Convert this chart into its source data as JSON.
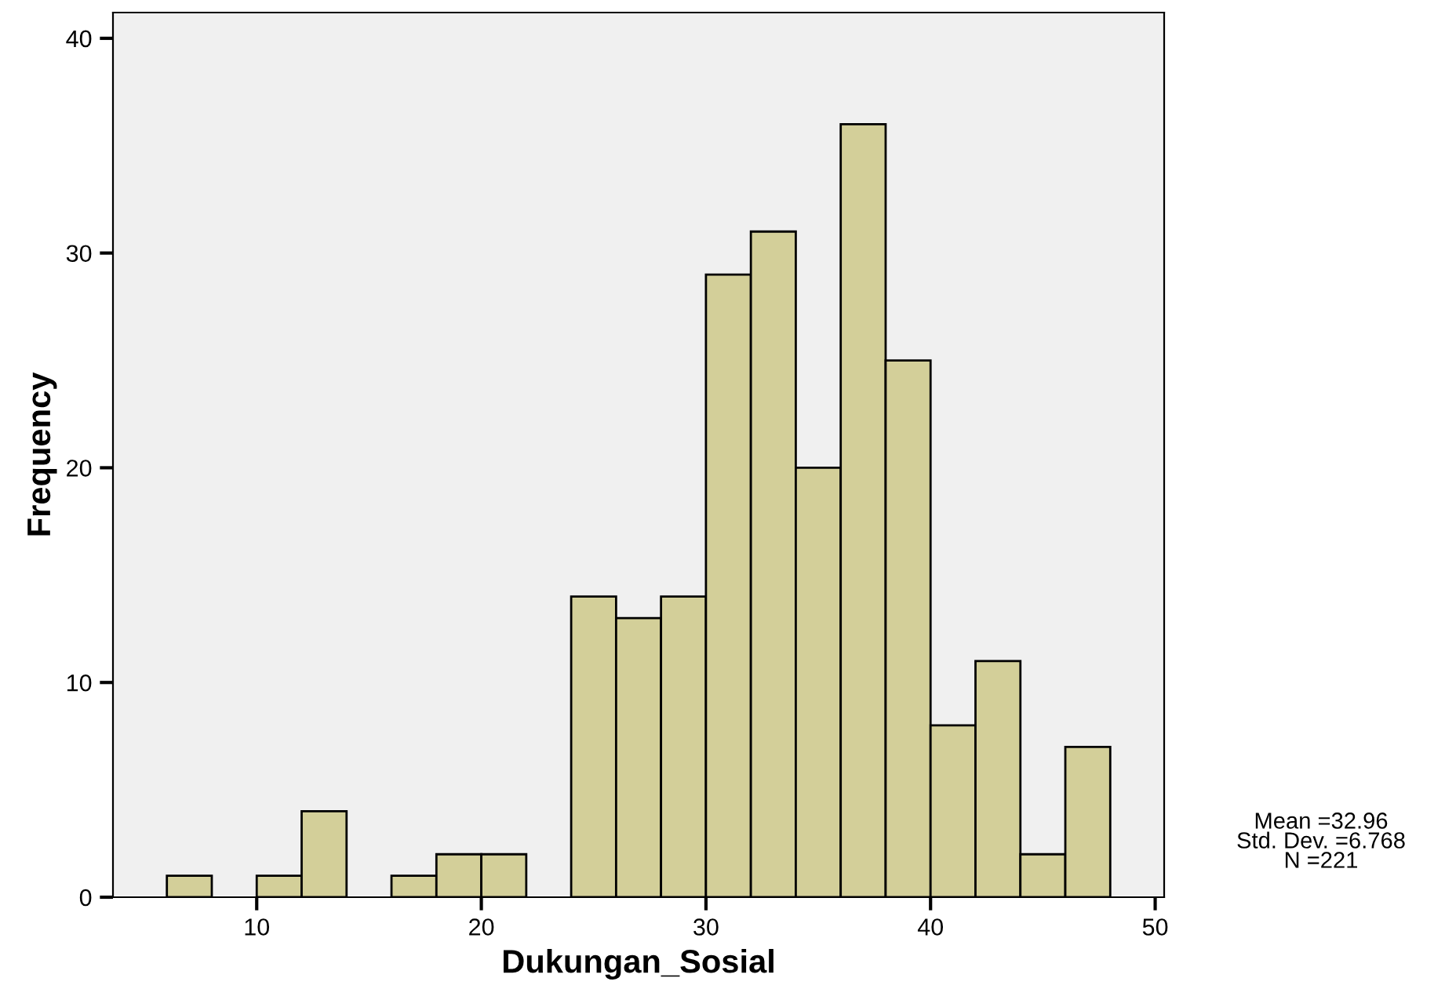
{
  "chart_data": {
    "type": "histogram",
    "xlabel": "Dukungan_Sosial",
    "ylabel": "Frequency",
    "bins": [
      6,
      8,
      10,
      12,
      14,
      16,
      18,
      20,
      22,
      24,
      26,
      28,
      30,
      32,
      34,
      36,
      38,
      40,
      42,
      44,
      46,
      48
    ],
    "values": [
      1,
      0,
      1,
      4,
      0,
      1,
      2,
      2,
      0,
      14,
      13,
      14,
      29,
      31,
      20,
      36,
      25,
      8,
      11,
      2,
      7
    ],
    "color": "#d3cf99",
    "xlim": [
      3.6,
      50.4
    ],
    "xticks": [
      10,
      20,
      30,
      40,
      50
    ],
    "ylim": [
      0,
      41.2
    ],
    "yticks": [
      0,
      10,
      20,
      30,
      40
    ],
    "grid": false,
    "annotations": [
      "Mean =32.96\nStd. Dev. =6.768\nN =221"
    ]
  }
}
